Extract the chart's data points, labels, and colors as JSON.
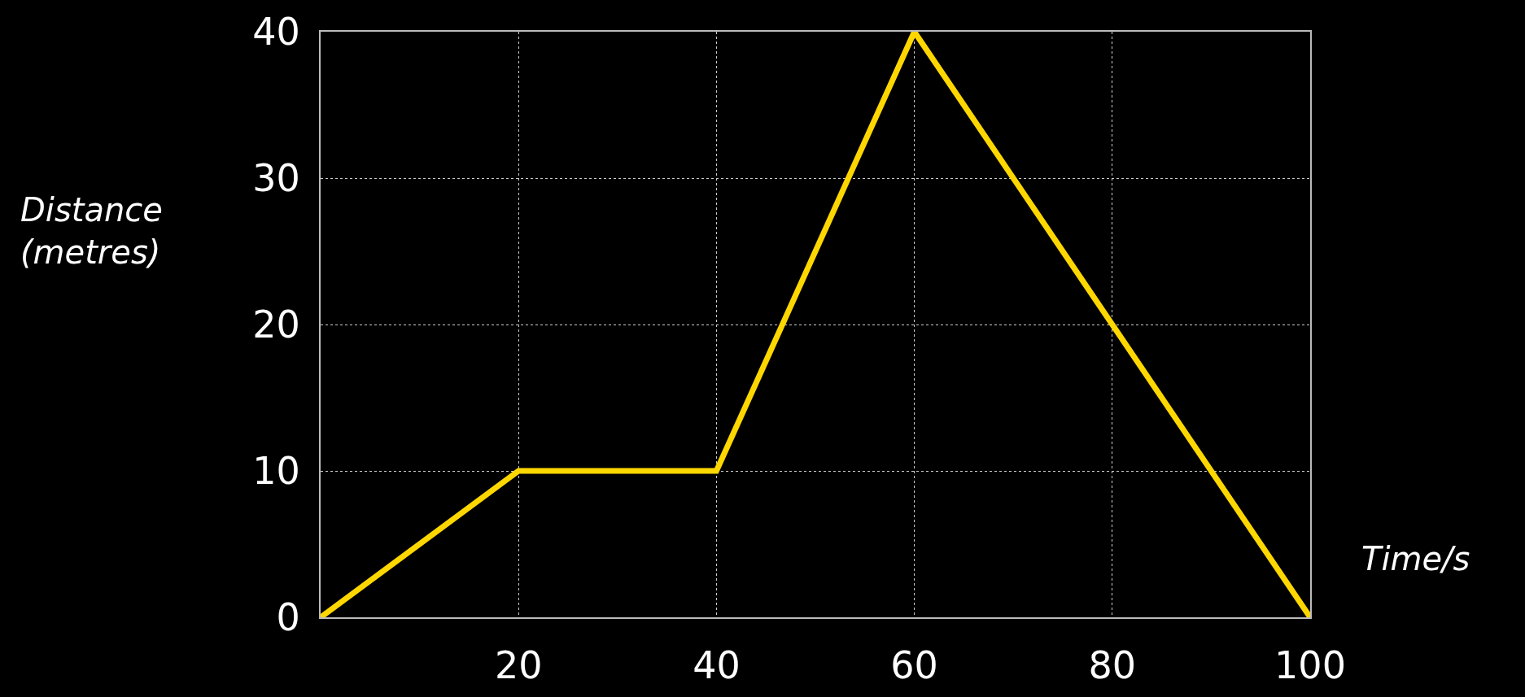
{
  "chart_data": {
    "type": "line",
    "xlabel": "Time/s",
    "ylabel": "Distance\n(metres)",
    "x": [
      0,
      20,
      40,
      60,
      100
    ],
    "series": [
      {
        "color": "#ffd700",
        "values": [
          0,
          10,
          10,
          40,
          0
        ]
      }
    ],
    "xlim": [
      0,
      100
    ],
    "xticks": [
      20,
      40,
      60,
      80,
      100
    ],
    "ylim": [
      0,
      40
    ],
    "yticks": [
      0,
      10,
      20,
      30,
      40
    ],
    "grid": true,
    "legend": false,
    "marker": "none",
    "line_style": "solid"
  }
}
